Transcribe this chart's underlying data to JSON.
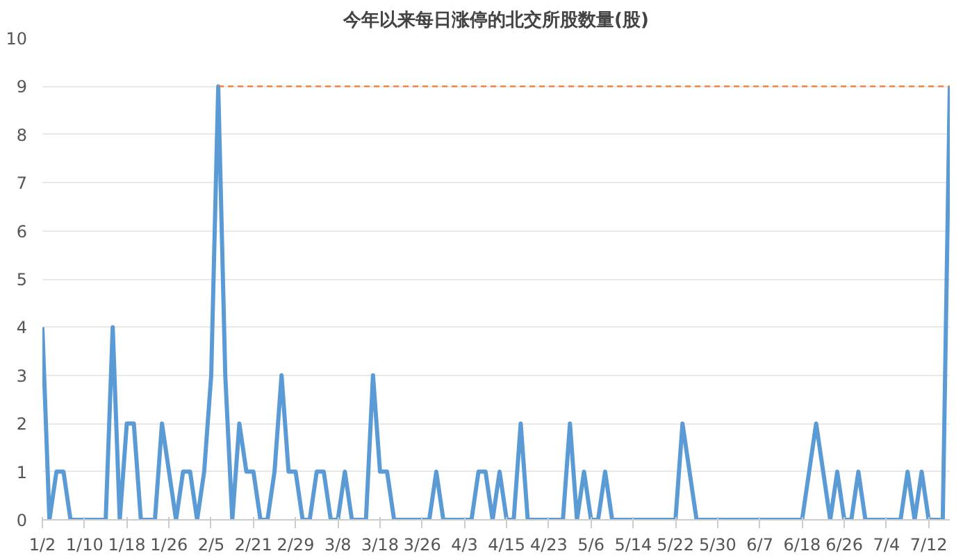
{
  "chart_data": {
    "type": "line",
    "title": "今年以来每日涨停的北交所股数量(股)",
    "categories": [
      "1/2",
      null,
      null,
      null,
      null,
      null,
      "1/10",
      null,
      null,
      null,
      null,
      null,
      "1/18",
      null,
      null,
      null,
      null,
      null,
      "1/26",
      null,
      null,
      null,
      null,
      null,
      "2/5",
      null,
      null,
      null,
      null,
      null,
      "2/21",
      null,
      null,
      null,
      null,
      null,
      "2/29",
      null,
      null,
      null,
      null,
      null,
      "3/8",
      null,
      null,
      null,
      null,
      null,
      "3/18",
      null,
      null,
      null,
      null,
      null,
      "3/26",
      null,
      null,
      null,
      null,
      null,
      "4/3",
      null,
      null,
      null,
      null,
      null,
      "4/15",
      null,
      null,
      null,
      null,
      null,
      "4/23",
      null,
      null,
      null,
      null,
      null,
      "5/6",
      null,
      null,
      null,
      null,
      null,
      "5/14",
      null,
      null,
      null,
      null,
      null,
      "5/22",
      null,
      null,
      null,
      null,
      null,
      "5/30",
      null,
      null,
      null,
      null,
      null,
      "6/7",
      null,
      null,
      null,
      null,
      null,
      "6/18",
      null,
      null,
      null,
      null,
      null,
      "6/26",
      null,
      null,
      null,
      null,
      null,
      "7/4",
      null,
      null,
      null,
      null,
      null,
      "7/12",
      null,
      null,
      null
    ],
    "series": [
      {
        "color": "#5b9bd5",
        "values": [
          4,
          0,
          1,
          1,
          0,
          0,
          0,
          0,
          0,
          0,
          4,
          0,
          2,
          2,
          0,
          0,
          0,
          2,
          1,
          0,
          1,
          1,
          0,
          1,
          3,
          9,
          3,
          0,
          2,
          1,
          1,
          0,
          0,
          1,
          3,
          1,
          1,
          0,
          0,
          1,
          1,
          0,
          0,
          1,
          0,
          0,
          0,
          3,
          1,
          1,
          0,
          0,
          0,
          0,
          0,
          0,
          1,
          0,
          0,
          0,
          0,
          0,
          1,
          1,
          0,
          1,
          0,
          0,
          2,
          0,
          0,
          0,
          0,
          0,
          0,
          2,
          0,
          1,
          0,
          0,
          1,
          0,
          0,
          0,
          0,
          0,
          0,
          0,
          0,
          0,
          0,
          2,
          1,
          0,
          0,
          0,
          0,
          0,
          0,
          0,
          0,
          0,
          0,
          0,
          0,
          0,
          0,
          0,
          0,
          1,
          2,
          1,
          0,
          1,
          0,
          0,
          1,
          0,
          0,
          0,
          0,
          0,
          0,
          1,
          0,
          1,
          0,
          0,
          0,
          9
        ]
      }
    ],
    "ylim": [
      0,
      10
    ],
    "yticks": [
      0,
      1,
      2,
      3,
      4,
      5,
      6,
      7,
      8,
      9,
      10
    ],
    "grid": "y",
    "marker": "none",
    "line_style": "solid",
    "ref_lines": [
      {
        "axis": "y",
        "value": 9,
        "label": null,
        "color": "#ed7d31",
        "line_style": "dashed"
      }
    ]
  }
}
